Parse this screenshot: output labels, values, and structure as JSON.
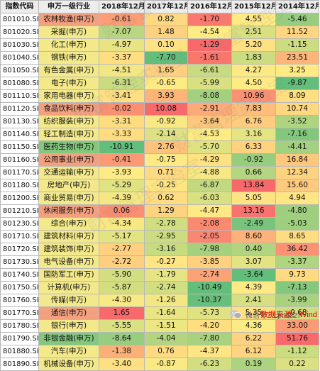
{
  "table": {
    "headers": [
      "指数代码",
      "申万一级行业",
      "2018年12月",
      "2017年12月",
      "2016年12月",
      "2015年12月",
      "2014年12月"
    ],
    "rows": [
      [
        "801010.SI",
        "农林牧渔(申万)",
        "-0.61",
        "0.82",
        "-1.70",
        "4.55",
        "-5.46"
      ],
      [
        "801020.SI",
        "采掘(申万)",
        "-7.07",
        "1.48",
        "-4.54",
        "2.51",
        "11.52"
      ],
      [
        "801030.SI",
        "化工(申万)",
        "-4.97",
        "0.10",
        "-1.29",
        "5.20",
        "-1.15"
      ],
      [
        "801040.SI",
        "钢铁(申万)",
        "-3.37",
        "-7.70",
        "-1.61",
        "1.83",
        "23.51"
      ],
      [
        "801050.SI",
        "有色金属(申万)",
        "-4.51",
        "1.65",
        "-6.61",
        "4.27",
        "3.25"
      ],
      [
        "801080.SI",
        "电子(申万)",
        "-6.31",
        "-0.65",
        "-5.99",
        "4.50",
        "-9.87"
      ],
      [
        "801110.SI",
        "家用电器(申万)",
        "-3.41",
        "3.93",
        "-8.08",
        "10.96",
        "8.09"
      ],
      [
        "801120.SI",
        "食品饮料(申万)",
        "-0.02",
        "10.08",
        "-2.91",
        "7.83",
        "10.74"
      ],
      [
        "801130.SI",
        "纺织服装(申万)",
        "-3.31",
        "-0.92",
        "-3.64",
        "6.76",
        "-3.52"
      ],
      [
        "801140.SI",
        "轻工制造(申万)",
        "-3.33",
        "-2.14",
        "-4.53",
        "3.16",
        "-7.16"
      ],
      [
        "801150.SI",
        "医药生物(申万)",
        "-10.91",
        "2.76",
        "-5.70",
        "6.33",
        "-4.41"
      ],
      [
        "801160.SI",
        "公用事业(申万)",
        "-0.41",
        "-0.75",
        "-4.29",
        "-0.92",
        "16.84"
      ],
      [
        "801170.SI",
        "交通运输(申万)",
        "-3.93",
        "0.71",
        "-4.88",
        "0.66",
        "12.34"
      ],
      [
        "801180.SI",
        "房地产(申万)",
        "-5.29",
        "-0.25",
        "-6.87",
        "13.84",
        "15.60"
      ],
      [
        "801200.SI",
        "商业贸易(申万)",
        "-4.39",
        "0.62",
        "-6.03",
        "5.05",
        "4.94"
      ],
      [
        "801210.SI",
        "休闲服务(申万)",
        "0.06",
        "1.29",
        "-4.47",
        "13.16",
        "-4.80"
      ],
      [
        "801230.SI",
        "综合(申万)",
        "-4.34",
        "-2.78",
        "-2.08",
        "-2.49",
        "-5.03"
      ],
      [
        "801710.SI",
        "建筑材料(申万)",
        "-5.17",
        "-2.95",
        "-2.05",
        "8.60",
        "8.65"
      ],
      [
        "801720.SI",
        "建筑装饰(申万)",
        "-2.77",
        "-3.16",
        "-7.98",
        "0.40",
        "36.42"
      ],
      [
        "801730.SI",
        "电气设备(申万)",
        "-2.72",
        "-0.27",
        "-3.85",
        "3.07",
        "-3.37"
      ],
      [
        "801740.SI",
        "国防军工(申万)",
        "-5.90",
        "-1.79",
        "-2.74",
        "-3.64",
        "9.73"
      ],
      [
        "801750.SI",
        "计算机(申万)",
        "-5.87",
        "-2.74",
        "-10.49",
        "4.39",
        "-7.13"
      ],
      [
        "801760.SI",
        "传媒(申万)",
        "-4.30",
        "-1.26",
        "-10.37",
        "2.41",
        "-3.99"
      ],
      [
        "801770.SI",
        "通信(申万)",
        "1.65",
        "-1.64",
        "-5.73",
        "5.35",
        "-0.68"
      ],
      [
        "801780.SI",
        "银行(申万)",
        "-5.55",
        "-1.51",
        "-4.20",
        "4.36",
        "33.00"
      ],
      [
        "801790.SI",
        "非银金融(申万)",
        "-8.64",
        "-4.04",
        "-7.80",
        "6.22",
        "51.76"
      ],
      [
        "801880.SI",
        "汽车(申万)",
        "-1.38",
        "0.76",
        "-4.37",
        "6.12",
        "-1.12"
      ],
      [
        "801890.SI",
        "机械设备(申万)",
        "-3.40",
        "-0.87",
        "-6.23",
        "0.19",
        "0.22"
      ]
    ]
  },
  "colors": {
    "green": "#63be7b",
    "yellow": "#ffeb84",
    "red": "#f8696b",
    "name_green": "#84c87e",
    "name_yellow": "#f3e98a",
    "name_red": "#f2a07f"
  },
  "watermark": {
    "text": "财富管理实验室"
  },
  "footer": {
    "brand": "微信号：Ljm0327",
    "source": "数据来源：Wind",
    "logo_icon": "wechat-logo-icon"
  }
}
